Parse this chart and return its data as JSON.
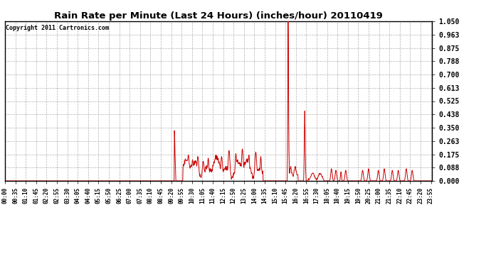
{
  "title": "Rain Rate per Minute (Last 24 Hours) (inches/hour) 20110419",
  "copyright_text": "Copyright 2011 Cartronics.com",
  "line_color": "#cc0000",
  "bg_color": "#ffffff",
  "plot_bg_color": "#ffffff",
  "grid_color": "#b0b0b0",
  "yticks": [
    0.0,
    0.088,
    0.175,
    0.263,
    0.35,
    0.438,
    0.525,
    0.613,
    0.7,
    0.788,
    0.875,
    0.963,
    1.05
  ],
  "ylim": [
    0.0,
    1.05
  ],
  "total_minutes": 1440,
  "xtick_step": 35,
  "figsize": [
    6.9,
    3.75
  ],
  "dpi": 100
}
